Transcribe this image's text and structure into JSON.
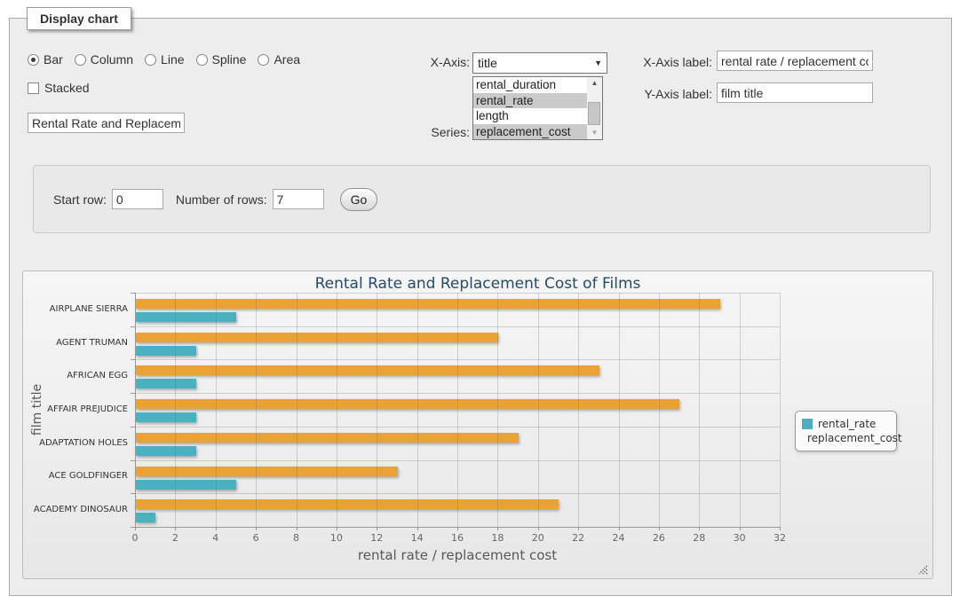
{
  "form": {
    "legend": "Display chart",
    "chart_types": [
      {
        "label": "Bar",
        "checked": true
      },
      {
        "label": "Column",
        "checked": false
      },
      {
        "label": "Line",
        "checked": false
      },
      {
        "label": "Spline",
        "checked": false
      },
      {
        "label": "Area",
        "checked": false
      }
    ],
    "stacked_label": "Stacked",
    "title_value": "Rental Rate and Replacemer",
    "x_axis_select_label": "X-Axis:",
    "x_axis_select_value": "title",
    "series_label": "Series:",
    "series_options": [
      {
        "label": "rental_duration",
        "selected": false
      },
      {
        "label": "rental_rate",
        "selected": true
      },
      {
        "label": "length",
        "selected": false
      },
      {
        "label": "replacement_cost",
        "selected": true
      }
    ],
    "x_axis_label_label": "X-Axis label:",
    "x_axis_label_value": "rental rate / replacement cost",
    "y_axis_label_label": "Y-Axis label:",
    "y_axis_label_value": "film title"
  },
  "pagination": {
    "start_row_label": "Start row:",
    "start_row_value": "0",
    "num_rows_label": "Number of rows:",
    "num_rows_value": "7",
    "go_label": "Go"
  },
  "icons": {
    "dropdown_arrow": "▼",
    "scroll_up": "▲",
    "scroll_down": "▼"
  },
  "chart_data": {
    "type": "bar",
    "title": "Rental Rate and Replacement Cost of Films",
    "xlabel": "rental rate / replacement cost",
    "ylabel": "film title",
    "categories": [
      "AIRPLANE SIERRA",
      "AGENT TRUMAN",
      "AFRICAN EGG",
      "AFFAIR PREJUDICE",
      "ADAPTATION HOLES",
      "ACE GOLDFINGER",
      "ACADEMY DINOSAUR"
    ],
    "series": [
      {
        "name": "rental_rate",
        "color": "#4bb1c0",
        "values": [
          4.99,
          2.99,
          2.99,
          2.99,
          2.99,
          4.99,
          0.99
        ]
      },
      {
        "name": "replacement_cost",
        "color": "#e9a233",
        "values": [
          28.99,
          17.99,
          22.99,
          26.99,
          18.99,
          12.99,
          20.99
        ]
      }
    ],
    "xlim": [
      0,
      32
    ],
    "tick_step": 2,
    "grid": true,
    "legend_position": "right"
  }
}
